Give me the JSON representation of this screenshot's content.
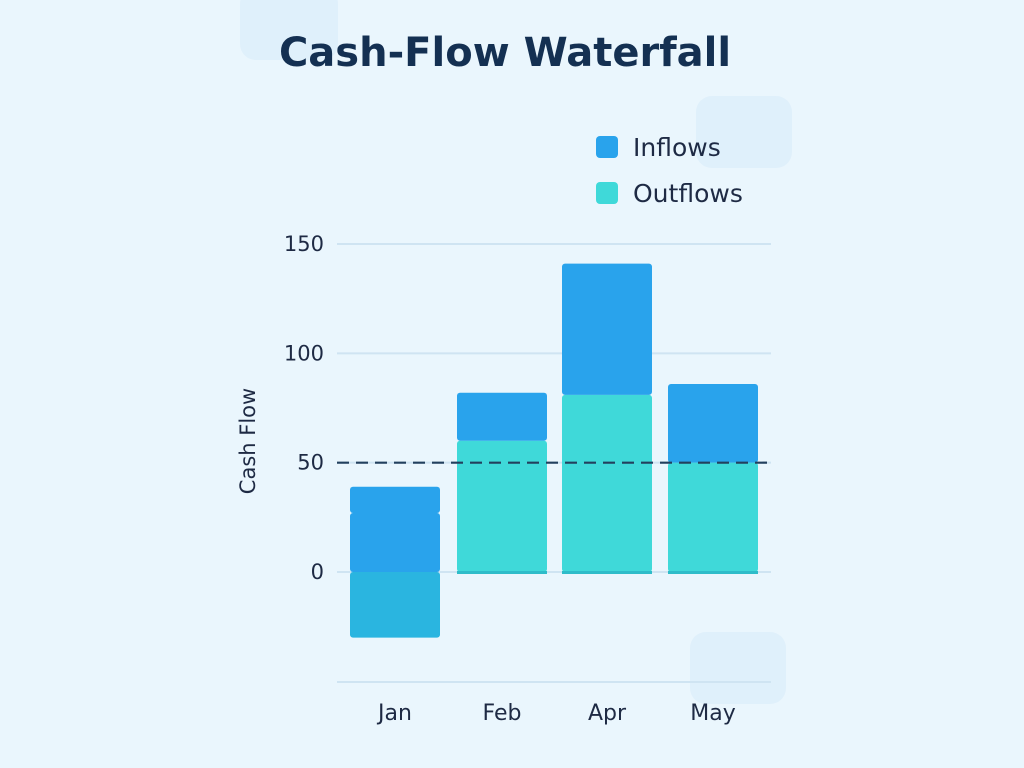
{
  "chart_data": {
    "type": "bar",
    "stacked": true,
    "title": "Cash-Flow Waterfall",
    "xlabel": "",
    "ylabel": "Cash Flow",
    "categories": [
      "Jan",
      "Feb",
      "Apr",
      "May"
    ],
    "series": [
      {
        "name": "Outflows",
        "color": "#3fd9d9",
        "segments": [
          [
            -30,
            0
          ],
          [
            0,
            60
          ],
          [
            0,
            81
          ],
          [
            0,
            50
          ]
        ]
      },
      {
        "name": "Inflows",
        "color": "#29a3ec",
        "segments": [
          [
            0,
            27
          ],
          null,
          null,
          null
        ]
      },
      {
        "name": "Inflows",
        "color": "#29a3ec",
        "segments": [
          [
            27,
            39
          ],
          [
            60,
            82
          ],
          [
            81,
            141
          ],
          [
            50,
            86
          ]
        ]
      }
    ],
    "yticks": [
      0,
      50,
      100,
      150
    ],
    "ylim": [
      -50,
      160
    ],
    "reference_line": 50,
    "grid": true,
    "legend": {
      "position": "top-right",
      "items": [
        {
          "label": "Inflows",
          "color": "#29a3ec"
        },
        {
          "label": "Outflows",
          "color": "#3fd9d9"
        }
      ]
    }
  }
}
